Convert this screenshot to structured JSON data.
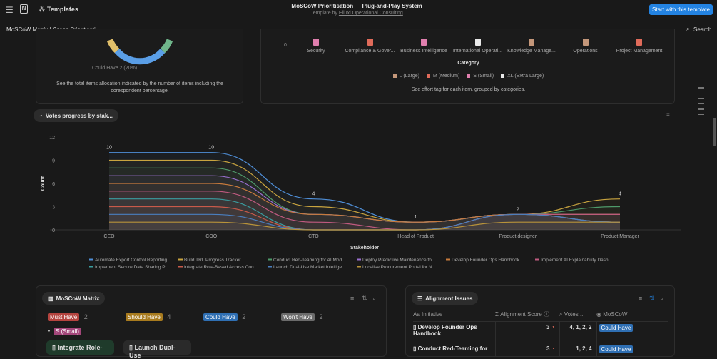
{
  "header": {
    "app": "Templates",
    "title": "MoSCoW Prioritisation — Plug-and-Play System",
    "subtitle_prefix": "Template by",
    "author": "Elluxi Operational Consulting",
    "more": "···",
    "cta": "Start with this template"
  },
  "breadcrumb": {
    "page": "MoSCoW Matrix | Scope Prioritisati...",
    "search": "Search"
  },
  "donut_card": {
    "label": "Could Have  2 (20%)",
    "caption": "See the total items allocation indicated by the number of items including the corespondent percentage."
  },
  "effort_card": {
    "y_tick": "0",
    "categories": [
      "Security",
      "Compliance & Gover...",
      "Business Intelligence",
      "International Operati...",
      "Knowledge Manage...",
      "Operations",
      "Project Management"
    ],
    "bar_colors": [
      "#e07fae",
      "#e06b5a",
      "#e07fae",
      "#e8e8e8",
      "#c4977a",
      "#c4977a",
      "#e06b5a"
    ],
    "xlabel": "Category",
    "legend": [
      {
        "label": "L (Large)",
        "color": "#c4977a"
      },
      {
        "label": "M (Medium)",
        "color": "#e06b5a"
      },
      {
        "label": "S (Small)",
        "color": "#e07fae"
      },
      {
        "label": "XL (Extra Large)",
        "color": "#e8e8e8"
      }
    ],
    "caption": "See effort tag for each item, grouped by categories."
  },
  "votes_chip": "Votes progress by stak...",
  "chart_data": {
    "type": "line",
    "xlabel": "Stakeholder",
    "ylabel": "Count",
    "ylim": [
      0,
      12
    ],
    "yticks": [
      "0",
      "3",
      "6",
      "9",
      "12"
    ],
    "categories": [
      "CEO",
      "COO",
      "CTO",
      "Head of Product",
      "Product designer",
      "Product Manager"
    ],
    "series": [
      {
        "name": "Automate Export Control Reporting",
        "color": "#4f8fd8",
        "values": [
          10,
          10,
          4,
          1,
          2,
          1
        ]
      },
      {
        "name": "Build TRL Progress Tracker",
        "color": "#c9a43f",
        "values": [
          9,
          9,
          3,
          1,
          2,
          4
        ]
      },
      {
        "name": "Conduct Red-Teaming for AI Mod...",
        "color": "#4e9a6a",
        "values": [
          8,
          8,
          2,
          1,
          2,
          3
        ]
      },
      {
        "name": "Deploy Predictive Maintenance fo...",
        "color": "#9a6fd0",
        "values": [
          7,
          7,
          2,
          1,
          2,
          2
        ]
      },
      {
        "name": "Develop Founder Ops Handbook",
        "color": "#c77a3c",
        "values": [
          6,
          6,
          2,
          1,
          2,
          2
        ]
      },
      {
        "name": "Implement AI Explainability Dash...",
        "color": "#c05a80",
        "values": [
          5,
          5,
          1,
          0,
          2,
          2
        ]
      },
      {
        "name": "Implement Secure Data Sharing P...",
        "color": "#3a9ea0",
        "values": [
          4,
          4,
          0,
          0,
          2,
          1
        ]
      },
      {
        "name": "Integrate Role-Based Access Con...",
        "color": "#c85a4a",
        "values": [
          3,
          3,
          0,
          0,
          2,
          1
        ]
      },
      {
        "name": "Launch Dual-Use Market Intellige...",
        "color": "#4a7fc0",
        "values": [
          2,
          2,
          0,
          0,
          2,
          1
        ]
      },
      {
        "name": "Localise Procurement Portal for N...",
        "color": "#b8933a",
        "values": [
          1,
          1,
          0,
          0,
          1,
          1
        ]
      }
    ],
    "data_labels": [
      "10",
      "10",
      "4",
      "1",
      "2",
      "4"
    ]
  },
  "matrix": {
    "title": "MoSCoW Matrix",
    "groups": [
      {
        "label": "Must Have",
        "count": "2",
        "color": "#b5443f"
      },
      {
        "label": "Should Have",
        "count": "4",
        "color": "#a87b1e"
      },
      {
        "label": "Could Have",
        "count": "2",
        "color": "#2f6fb3"
      },
      {
        "label": "Won't Have",
        "count": "2",
        "color": "#6b6b6b"
      }
    ],
    "subgroup": "S (Small)",
    "cards": [
      "Integrate Role-",
      "Launch Dual-Use"
    ]
  },
  "alignment": {
    "title": "Alignment Issues",
    "columns": [
      "Initiative",
      "Alignment Score",
      "Votes ...",
      "MoSCoW"
    ],
    "rows": [
      {
        "initiative": "Develop Founder Ops Handbook",
        "score": "3",
        "votes": "4, 1, 2, 2",
        "moscow": "Could Have"
      },
      {
        "initiative": "Conduct Red-Teaming for",
        "score": "3",
        "votes": "1, 2, 4",
        "moscow": "Could Have"
      }
    ]
  }
}
